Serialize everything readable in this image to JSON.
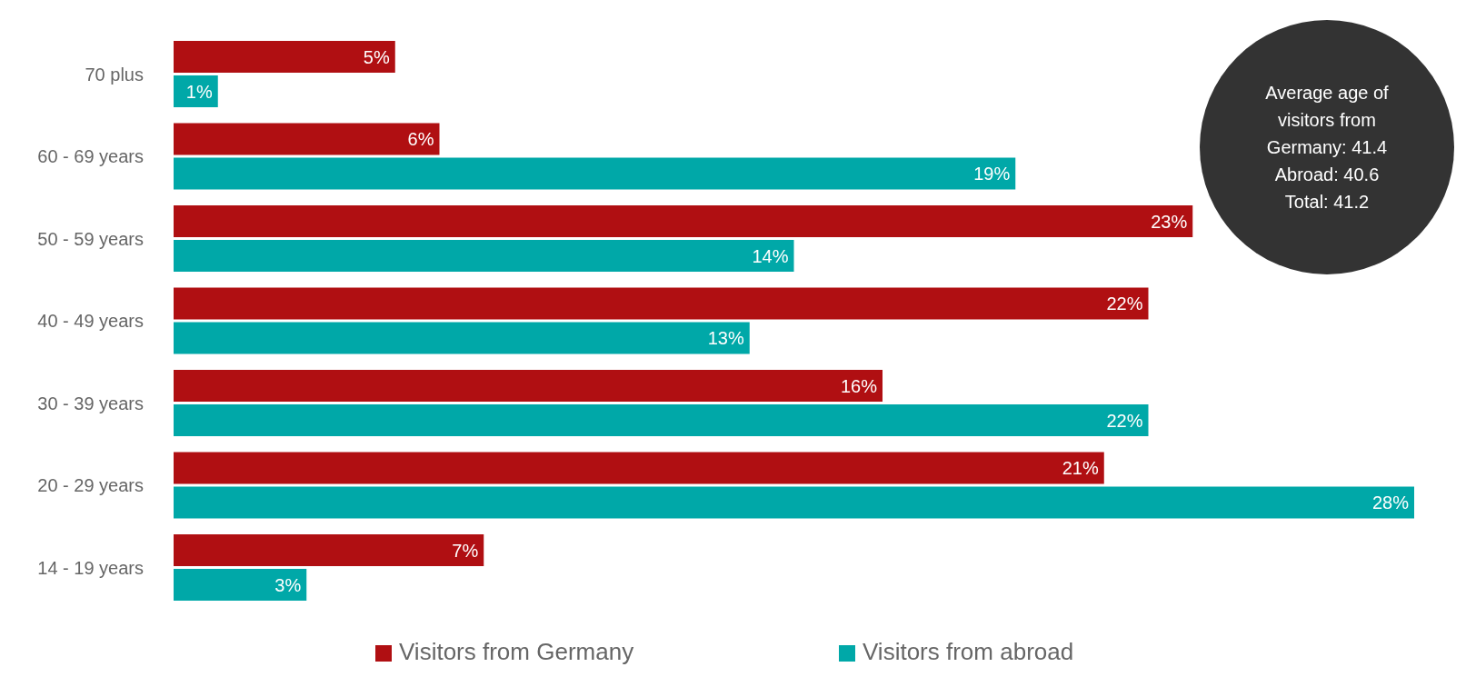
{
  "chart_data": {
    "type": "bar",
    "orientation": "horizontal",
    "categories": [
      "70 plus",
      "60 - 69 years",
      "50 - 59 years",
      "40 - 49 years",
      "30 - 39 years",
      "20 - 29 years",
      "14 - 19 years"
    ],
    "series": [
      {
        "name": "Visitors from Germany",
        "color": "#b00f12",
        "values": [
          5,
          6,
          23,
          22,
          16,
          21,
          7
        ],
        "value_labels": [
          "5%",
          "6%",
          "23%",
          "22%",
          "16%",
          "21%",
          "7%"
        ]
      },
      {
        "name": "Visitors from abroad",
        "color": "#00a8a8",
        "values": [
          1,
          19,
          14,
          13,
          22,
          28,
          3
        ],
        "value_labels": [
          "1%",
          "19%",
          "14%",
          "13%",
          "22%",
          "28%",
          "3%"
        ]
      }
    ],
    "legend": "bottom",
    "grid": false,
    "annotations": [
      "Average age of visitors from Germany: 41.4",
      "Abroad: 40.6",
      "Total: 41.2"
    ]
  }
}
